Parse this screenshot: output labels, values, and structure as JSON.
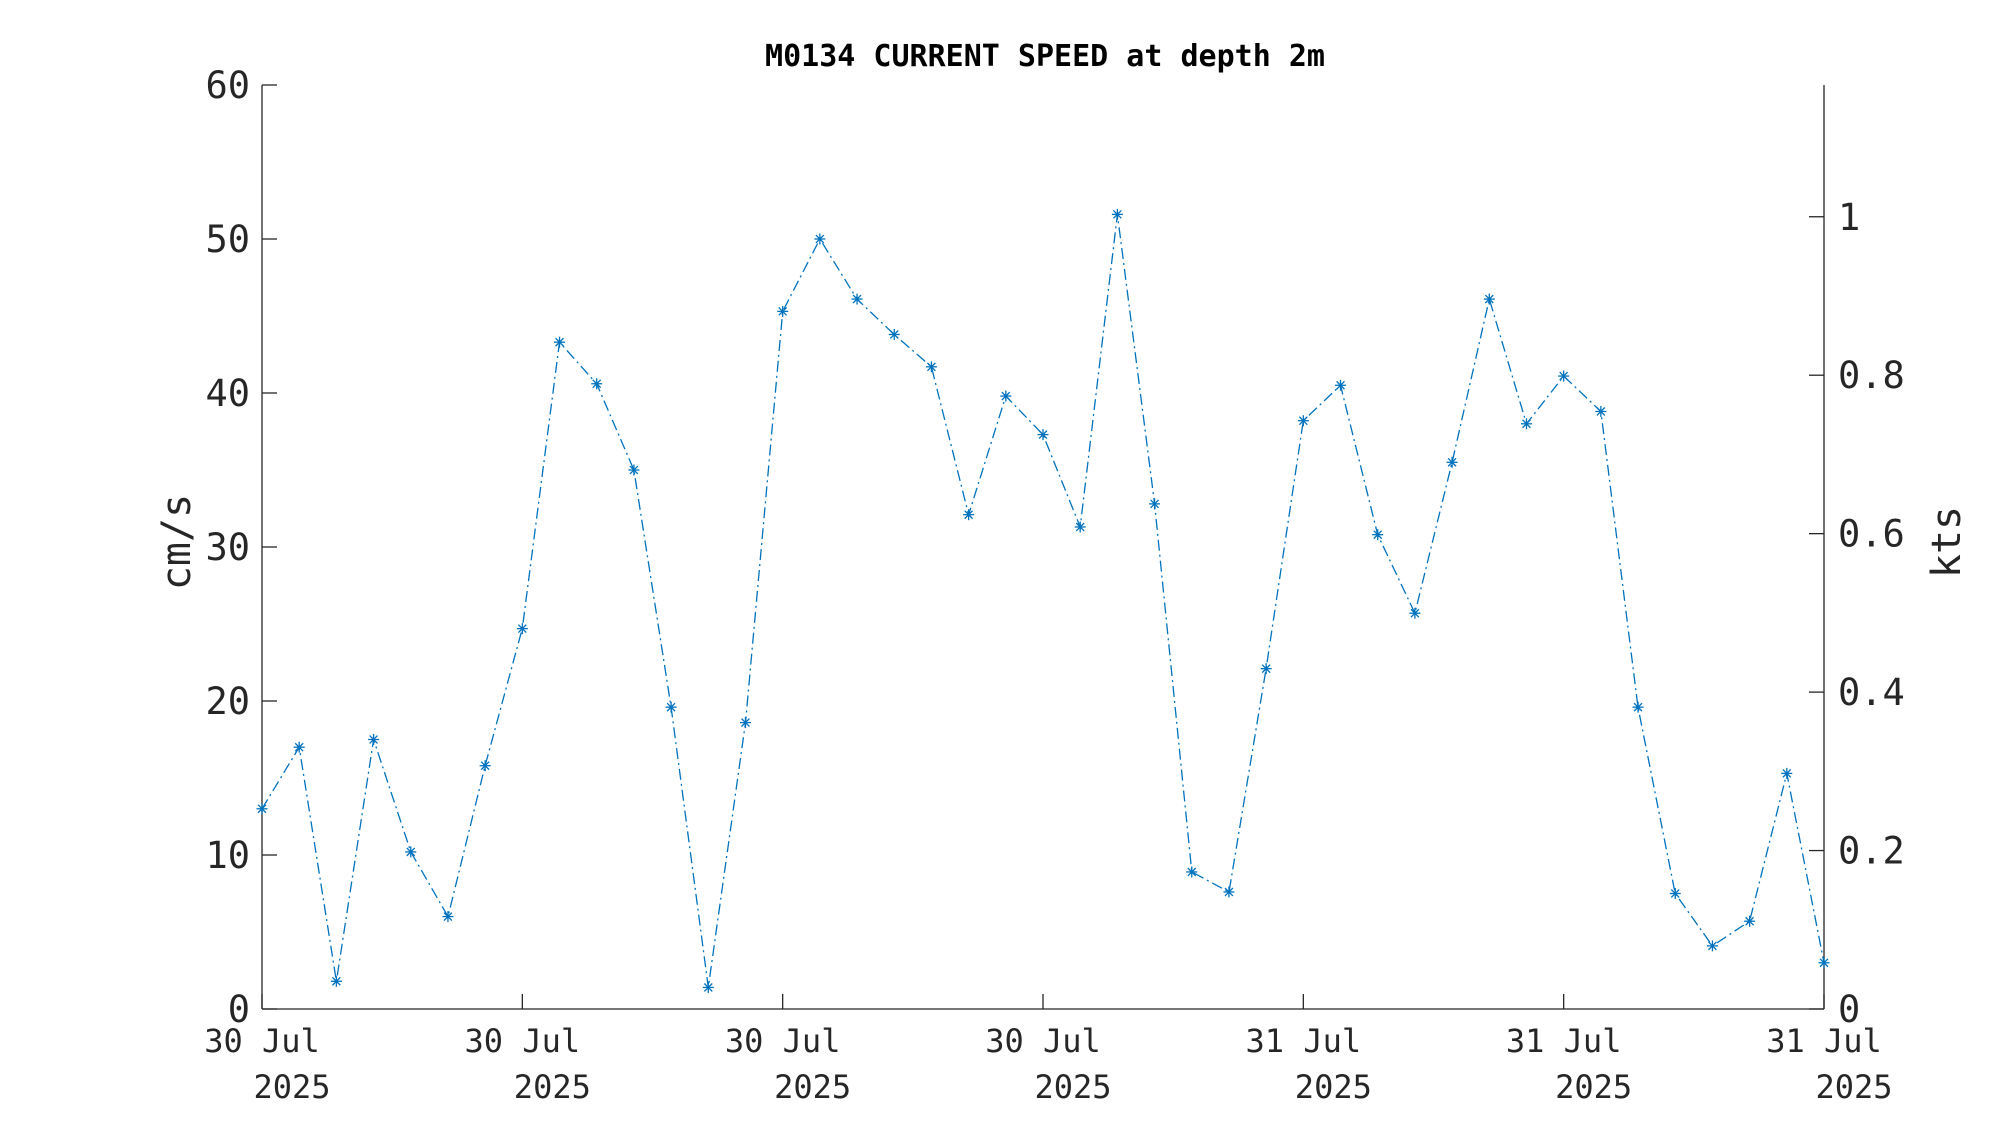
{
  "chart_data": {
    "type": "line",
    "title": "M0134 CURRENT SPEED at depth 2m",
    "ylabel_left": "cm/s",
    "ylabel_right": "kts",
    "ylim_left": [
      0,
      60
    ],
    "ylim_right_kts": [
      0,
      1.1663
    ],
    "yticks_left": [
      0,
      10,
      20,
      30,
      40,
      50,
      60
    ],
    "yticks_right": [
      0,
      0.2,
      0.4,
      0.6,
      0.8,
      1
    ],
    "yticklabels_right": [
      "0",
      "0.2",
      "0.4",
      "0.6",
      "0.8",
      "1"
    ],
    "x_range_index": [
      0,
      42
    ],
    "xticks": [
      {
        "index": 0,
        "line1": "30 Jul",
        "line2": "2025"
      },
      {
        "index": 7,
        "line1": "30 Jul",
        "line2": "2025"
      },
      {
        "index": 14,
        "line1": "30 Jul",
        "line2": "2025"
      },
      {
        "index": 21,
        "line1": "30 Jul",
        "line2": "2025"
      },
      {
        "index": 28,
        "line1": "31 Jul",
        "line2": "2025"
      },
      {
        "index": 35,
        "line1": "31 Jul",
        "line2": "2025"
      },
      {
        "index": 42,
        "line1": "31 Jul",
        "line2": "2025"
      }
    ],
    "grid": false,
    "series": [
      {
        "color": "#0072BD",
        "line_style": "dash-dot",
        "marker": "asterisk",
        "values": [
          13.0,
          17.0,
          1.8,
          17.5,
          10.2,
          6.0,
          15.8,
          24.7,
          43.3,
          40.6,
          35.0,
          19.6,
          1.4,
          18.6,
          45.3,
          50.0,
          46.1,
          43.8,
          41.7,
          32.1,
          39.8,
          37.3,
          31.3,
          51.6,
          32.8,
          8.9,
          7.6,
          22.1,
          38.2,
          40.5,
          30.8,
          25.7,
          35.5,
          46.1,
          38.0,
          41.1,
          38.8,
          19.6,
          7.5,
          4.1,
          5.7,
          15.3,
          3.0
        ]
      }
    ]
  }
}
